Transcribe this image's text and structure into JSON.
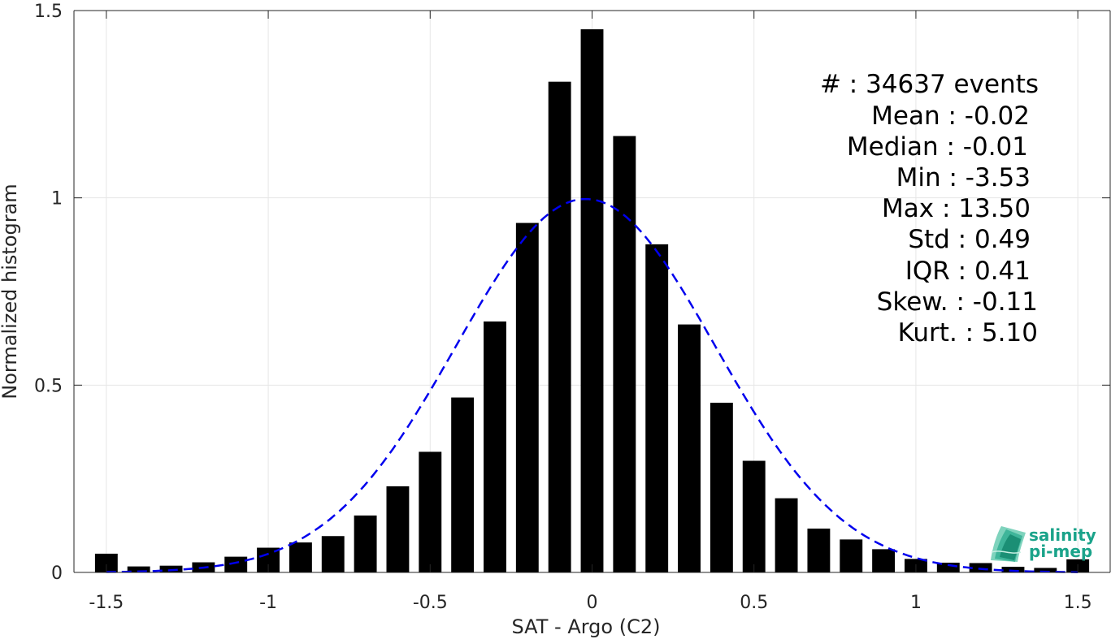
{
  "chart_data": {
    "type": "bar",
    "xlabel": "SAT - Argo (C2)",
    "ylabel": "Normalized histogram",
    "xlim": [
      -1.6,
      1.6
    ],
    "ylim": [
      0,
      1.5
    ],
    "xticks": [
      -1.5,
      -1,
      -0.5,
      0,
      0.5,
      1,
      1.5
    ],
    "xtick_labels": [
      "-1.5",
      "-1",
      "-0.5",
      "0",
      "0.5",
      "1",
      "1.5"
    ],
    "yticks": [
      0,
      0.5,
      1,
      1.5
    ],
    "ytick_labels": [
      "0",
      "0.5",
      "1",
      "1.5"
    ],
    "grid": true,
    "bin_width": 0.1,
    "x": [
      -1.5,
      -1.4,
      -1.3,
      -1.2,
      -1.1,
      -1.0,
      -0.9,
      -0.8,
      -0.7,
      -0.6,
      -0.5,
      -0.4,
      -0.3,
      -0.2,
      -0.1,
      0.0,
      0.1,
      0.2,
      0.3,
      0.4,
      0.5,
      0.6,
      0.7,
      0.8,
      0.9,
      1.0,
      1.1,
      1.2,
      1.3,
      1.4,
      1.5
    ],
    "values": [
      0.05,
      0.016,
      0.018,
      0.027,
      0.042,
      0.066,
      0.08,
      0.097,
      0.152,
      0.23,
      0.322,
      0.467,
      0.67,
      0.933,
      1.31,
      1.45,
      1.165,
      0.876,
      0.662,
      0.453,
      0.298,
      0.198,
      0.117,
      0.088,
      0.062,
      0.036,
      0.026,
      0.025,
      0.015,
      0.012,
      0.035
    ],
    "bar_color": "#000000",
    "fit_curve": {
      "style": "dashed",
      "color": "#0000ee",
      "mean": -0.02,
      "std": 0.4,
      "peak": 0.997,
      "x_range": [
        -1.5,
        1.5
      ]
    }
  },
  "stats": {
    "lines": [
      "#  : 34637 events",
      "Mean : -0.02",
      "Median : -0.01",
      "Min : -3.53",
      "Max : 13.50",
      "Std : 0.49",
      "IQR : 0.41",
      "Skew. : -0.11",
      "Kurt. : 5.10"
    ]
  },
  "logo": {
    "line1": "salinity",
    "line2": "pi-mep",
    "color": "#1aa38a"
  }
}
